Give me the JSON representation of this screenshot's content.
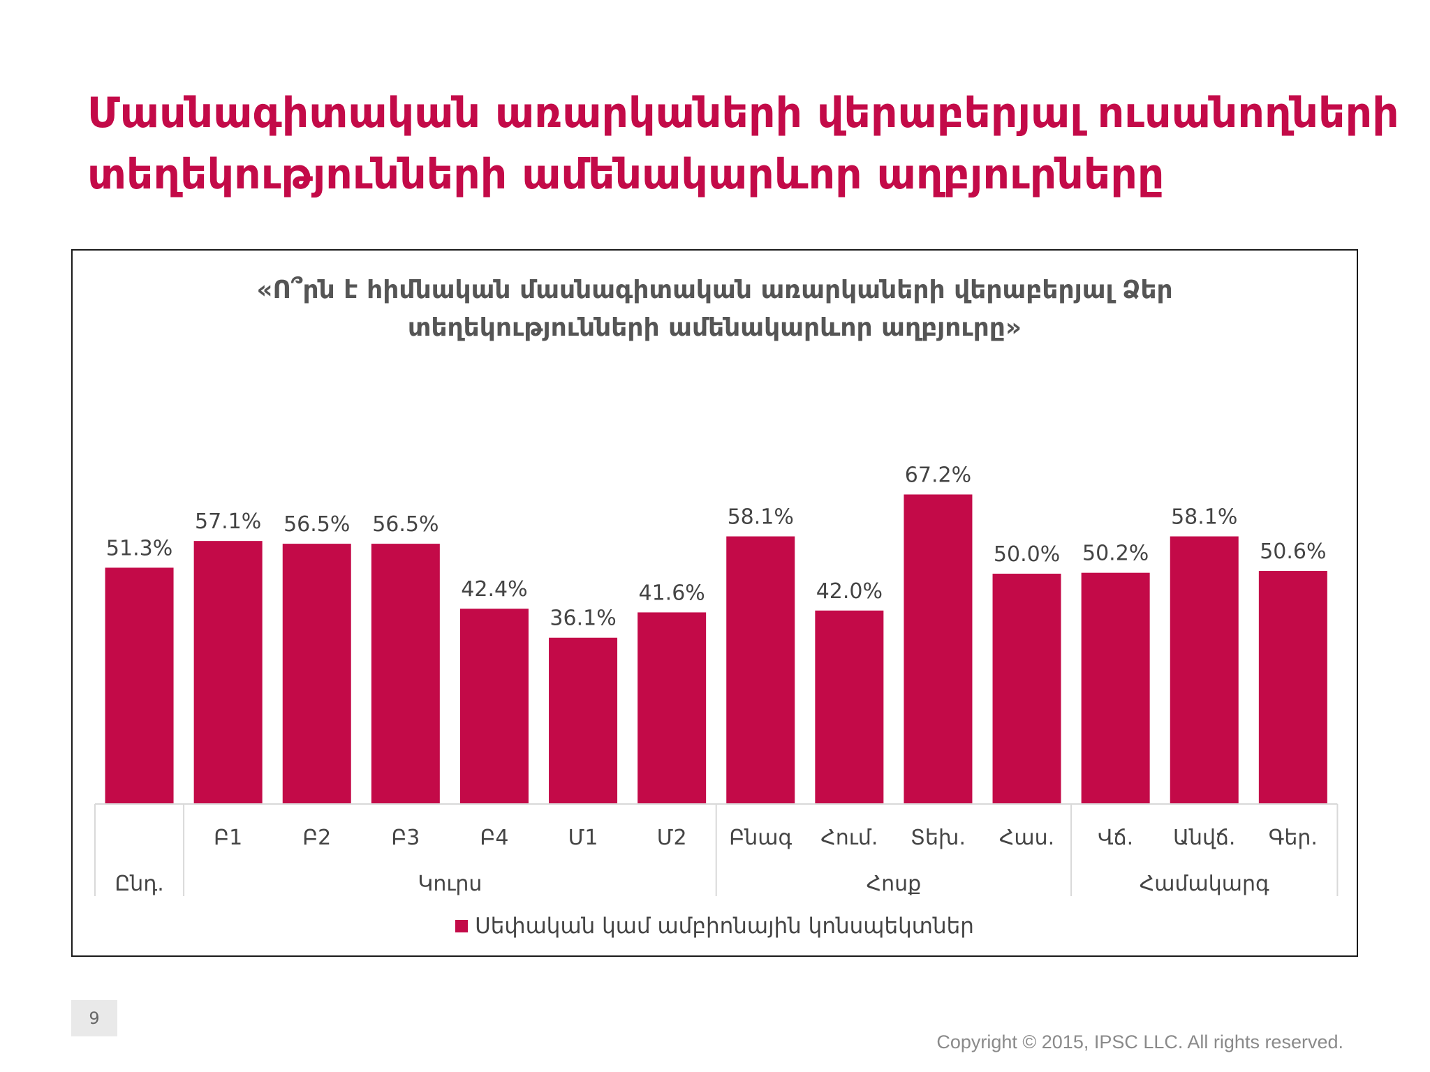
{
  "slide": {
    "title_lines": [
      "Մասնագիտական առարկաների վերաբերյալ ուսանողների",
      "տեղեկությունների ամենակարևոր աղբյուրները"
    ],
    "page_number": "9",
    "copyright": "Copyright © 2015, IPSC LLC. All rights reserved."
  },
  "colors": {
    "accent": "#c30a48",
    "axis": "#d9d9d9"
  },
  "chart_data": {
    "type": "bar",
    "title_lines": [
      "«Ո՞րն է հիմնական մասնագիտական առարկաների վերաբերյալ Ձեր",
      "տեղեկությունների ամենակարևոր աղբյուրը»"
    ],
    "categories": [
      "",
      "Բ1",
      "Բ2",
      "Բ3",
      "Բ4",
      "Մ1",
      "Մ2",
      "Բնագ",
      "Հում.",
      "Տեխ.",
      "Հաս.",
      "Վճ.",
      "Անվճ.",
      "Գեր."
    ],
    "groups": [
      {
        "label": "Ընդ.",
        "count": 1
      },
      {
        "label": "Կուրս",
        "count": 6
      },
      {
        "label": "Հոսք",
        "count": 4
      },
      {
        "label": "Համակարգ",
        "count": 3
      }
    ],
    "series": [
      {
        "name": "Սեփական կամ ամբիոնային կոնսպեկտներ",
        "values": [
          51.3,
          57.1,
          56.5,
          56.5,
          42.4,
          36.1,
          41.6,
          58.1,
          42.0,
          67.2,
          50.0,
          50.2,
          58.1,
          50.6
        ],
        "labels": [
          "51.3%",
          "57.1%",
          "56.5%",
          "56.5%",
          "42.4%",
          "36.1%",
          "41.6%",
          "58.1%",
          "42.0%",
          "67.2%",
          "50.0%",
          "50.2%",
          "58.1%",
          "50.6%"
        ]
      }
    ],
    "legend": "bottom",
    "grid": false
  }
}
